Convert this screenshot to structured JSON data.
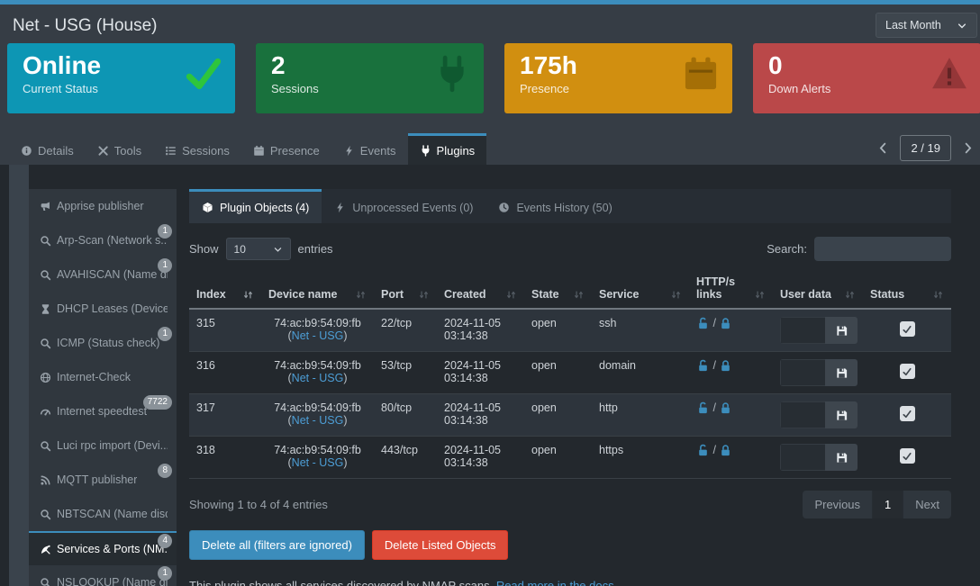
{
  "colors": {
    "accent": "#3c8dbc",
    "link": "#4d9ed6",
    "delete_all": "#3c8dbc",
    "delete_listed": "#dd4b39"
  },
  "window": {
    "title": "Net - USG (House)",
    "period_selector": "Last Month"
  },
  "summary_cards": [
    {
      "value": "Online",
      "label": "Current Status",
      "icon": "check",
      "bg": "#0d96b4",
      "icon_color": "#2ec53c"
    },
    {
      "value": "2",
      "label": "Sessions",
      "icon": "plug",
      "bg": "#19713d",
      "icon_color": "#0f5930"
    },
    {
      "value": "175h",
      "label": "Presence",
      "icon": "calendar",
      "bg": "#d18f10",
      "icon_color": "#a56f06"
    },
    {
      "value": "0",
      "label": "Down Alerts",
      "icon": "warning",
      "bg": "#ba4849",
      "icon_color": "#953638"
    }
  ],
  "page_tabs": {
    "items": [
      {
        "label": "Details",
        "icon": "info",
        "active": false
      },
      {
        "label": "Tools",
        "icon": "tools",
        "active": false
      },
      {
        "label": "Sessions",
        "icon": "list",
        "active": false
      },
      {
        "label": "Presence",
        "icon": "calendar",
        "active": false
      },
      {
        "label": "Events",
        "icon": "bolt",
        "active": false
      },
      {
        "label": "Plugins",
        "icon": "plug",
        "active": true
      }
    ],
    "pager": {
      "position": "2 / 19"
    }
  },
  "plugin_menu": [
    {
      "label": "Apprise publisher",
      "icon": "megaphone",
      "badge": null,
      "active": false
    },
    {
      "label": "Arp-Scan (Network s...",
      "icon": "search",
      "badge": "1",
      "active": false
    },
    {
      "label": "AVAHISCAN (Name di...",
      "icon": "search",
      "badge": "1",
      "active": false
    },
    {
      "label": "DHCP Leases (Device ...",
      "icon": "hourglass",
      "badge": null,
      "active": false
    },
    {
      "label": "ICMP (Status check)",
      "icon": "search",
      "badge": "1",
      "active": false
    },
    {
      "label": "Internet-Check",
      "icon": "globe",
      "badge": null,
      "active": false
    },
    {
      "label": "Internet speedtest",
      "icon": "tachometer",
      "badge": "7722",
      "active": false
    },
    {
      "label": "Luci rpc import (Devi...",
      "icon": "search",
      "badge": null,
      "active": false
    },
    {
      "label": "MQTT publisher",
      "icon": "rss",
      "badge": "8",
      "active": false
    },
    {
      "label": "NBTSCAN (Name disc...",
      "icon": "search",
      "badge": null,
      "active": false
    },
    {
      "label": "Services & Ports (NM...",
      "icon": "satellite",
      "badge": "4",
      "active": true
    },
    {
      "label": "NSLOOKUP (Name di...",
      "icon": "search",
      "badge": "1",
      "active": false
    }
  ],
  "plugin_panel": {
    "tabs": [
      {
        "label": "Plugin Objects (4)",
        "icon": "cube",
        "active": true
      },
      {
        "label": "Unprocessed Events (0)",
        "icon": "bolt",
        "active": false
      },
      {
        "label": "Events History (50)",
        "icon": "clock",
        "active": false
      }
    ],
    "length_menu": {
      "prefix": "Show",
      "value": "10",
      "suffix": "entries"
    },
    "search": {
      "label": "Search:",
      "value": ""
    },
    "table": {
      "columns": [
        "Index",
        "Device name",
        "Port",
        "Created",
        "State",
        "Service",
        "HTTP/s links",
        "User data",
        "Status"
      ],
      "rows": [
        {
          "index": "315",
          "device_mac": "74:ac:b9:54:09:fb",
          "device_link": "Net - USG",
          "port": "22/tcp",
          "created": "2024-11-05 03:14:38",
          "state": "open",
          "service": "ssh",
          "user_data": "",
          "status_checked": true
        },
        {
          "index": "316",
          "device_mac": "74:ac:b9:54:09:fb",
          "device_link": "Net - USG",
          "port": "53/tcp",
          "created": "2024-11-05 03:14:38",
          "state": "open",
          "service": "domain",
          "user_data": "",
          "status_checked": true
        },
        {
          "index": "317",
          "device_mac": "74:ac:b9:54:09:fb",
          "device_link": "Net - USG",
          "port": "80/tcp",
          "created": "2024-11-05 03:14:38",
          "state": "open",
          "service": "http",
          "user_data": "",
          "status_checked": true
        },
        {
          "index": "318",
          "device_mac": "74:ac:b9:54:09:fb",
          "device_link": "Net - USG",
          "port": "443/tcp",
          "created": "2024-11-05 03:14:38",
          "state": "open",
          "service": "https",
          "user_data": "",
          "status_checked": true
        }
      ]
    },
    "summary": "Showing 1 to 4 of 4 entries",
    "pagination": {
      "previous": "Previous",
      "current": "1",
      "next": "Next"
    },
    "actions": {
      "delete_all": "Delete all (filters are ignored)",
      "delete_listed": "Delete Listed Objects"
    },
    "note": {
      "text": "This plugin shows all services discovered by NMAP scans.",
      "link": "Read more in the docs."
    }
  }
}
